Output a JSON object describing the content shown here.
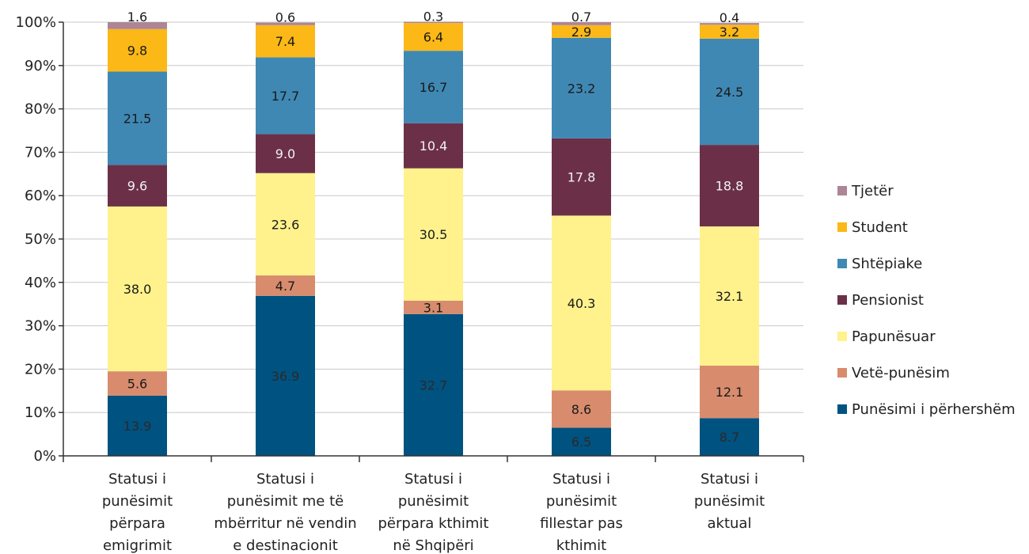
{
  "chart_data": {
    "type": "bar",
    "stacked": true,
    "ylim": [
      0,
      100
    ],
    "ytick_labels": [
      "0%",
      "10%",
      "20%",
      "30%",
      "40%",
      "50%",
      "60%",
      "70%",
      "80%",
      "90%",
      "100%"
    ],
    "grid": true,
    "legend_position": "right",
    "categories": [
      [
        "Statusi i",
        "punësimit",
        "përpara",
        "emigrimit"
      ],
      [
        "Statusi i",
        "punësimit me të",
        "mbërritur në vendin",
        "e destinacionit"
      ],
      [
        "Statusi i",
        "punësimit",
        "përpara kthimit",
        "në Shqipëri"
      ],
      [
        "Statusi i",
        "punësimit",
        "fillestar pas",
        "kthimit"
      ],
      [
        "Statusi i",
        "punësimit",
        "aktual"
      ]
    ],
    "series": [
      {
        "name": "Punësimi i përhershëm",
        "color": "#005280",
        "label_color": "#2a2a2a",
        "values": [
          13.9,
          36.9,
          32.7,
          6.5,
          8.7
        ]
      },
      {
        "name": "Vetë-punësim",
        "color": "#d88c6d",
        "label_color": "#1a1a1a",
        "values": [
          5.6,
          4.7,
          3.1,
          8.6,
          12.1
        ]
      },
      {
        "name": "Papunësuar",
        "color": "#fff28c",
        "label_color": "#1a1a1a",
        "values": [
          38.0,
          23.6,
          30.5,
          40.3,
          32.1
        ]
      },
      {
        "name": "Pensionist",
        "color": "#6b3048",
        "label_color": "#f2f2f2",
        "values": [
          9.6,
          9.0,
          10.4,
          17.8,
          18.8
        ]
      },
      {
        "name": "Shtëpiake",
        "color": "#3f88b3",
        "label_color": "#1a1a1a",
        "values": [
          21.5,
          17.7,
          16.7,
          23.2,
          24.5
        ]
      },
      {
        "name": "Student",
        "color": "#fbb817",
        "label_color": "#1a1a1a",
        "values": [
          9.8,
          7.4,
          6.4,
          2.9,
          3.2
        ]
      },
      {
        "name": "Tjetër",
        "color": "#ad8596",
        "label_color": "#1a1a1a",
        "values": [
          1.6,
          0.6,
          0.3,
          0.7,
          0.4
        ]
      }
    ],
    "legend_order": [
      "Tjetër",
      "Student",
      "Shtëpiake",
      "Pensionist",
      "Papunësuar",
      "Vetë-punësim",
      "Punësimi i përhershëm"
    ]
  }
}
